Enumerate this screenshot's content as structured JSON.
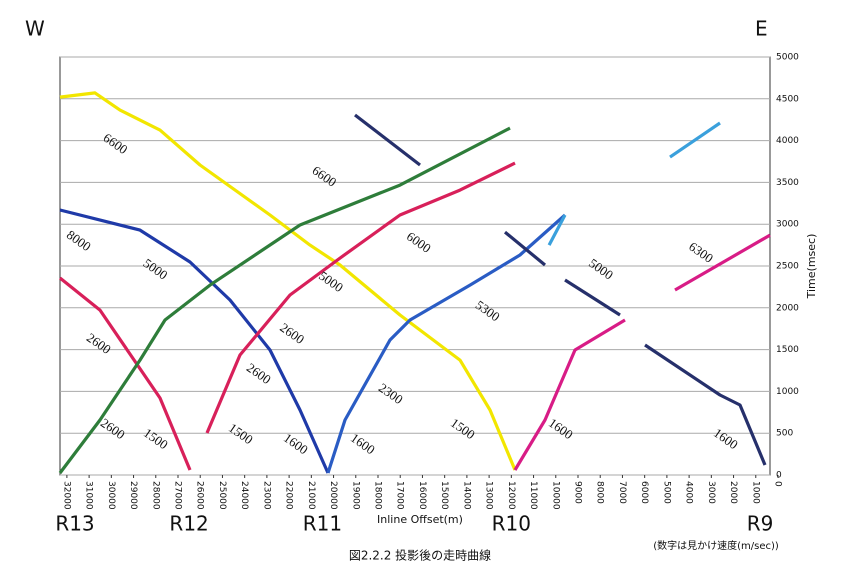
{
  "chart_data": {
    "type": "line",
    "corner_labels": [
      "W",
      "E"
    ],
    "stations": [
      {
        "label": "R13",
        "value": 32000
      },
      {
        "label": "R12",
        "value": 26500
      },
      {
        "label": "R11",
        "value": 20500
      },
      {
        "label": "R10",
        "value": 12000
      },
      {
        "label": "R9",
        "value": 0
      }
    ],
    "xlabel": "Inline Offset(m)",
    "ylabel": "Time(msec)",
    "caption": "図2.2.2 投影後の走時曲線",
    "note": "(数字は見かけ速度(m/sec))",
    "xlim": [
      32310,
      360
    ],
    "ylim": [
      0,
      5000
    ],
    "xticks": [
      32000,
      31000,
      30000,
      29000,
      28000,
      27000,
      26000,
      25000,
      24000,
      23000,
      22000,
      21000,
      20000,
      19000,
      18000,
      17000,
      16000,
      15000,
      14000,
      13000,
      12000,
      11000,
      10000,
      9000,
      8000,
      7000,
      6000,
      5000,
      4000,
      3000,
      2000,
      1000,
      0
    ],
    "yticks": [
      0,
      500,
      1000,
      1500,
      2000,
      2500,
      3000,
      3500,
      4000,
      4500,
      5000
    ],
    "grid": true,
    "series": [
      {
        "color": "#f2e600",
        "x": [
          32310,
          30735,
          29610,
          27810,
          26010,
          22860,
          21060,
          19710,
          17010,
          14310,
          12960,
          11835
        ],
        "values": [
          4520,
          4570,
          4365,
          4126,
          3708,
          3110,
          2750,
          2512,
          1914,
          1375,
          777,
          60
        ]
      },
      {
        "color": "#1f3aa8",
        "x": [
          32310,
          28710,
          26460,
          24660,
          22860,
          21510,
          20250
        ],
        "values": [
          3170,
          2930,
          2548,
          2093,
          1495,
          777,
          24
        ]
      },
      {
        "color": "#2a5cc4",
        "x": [
          20250,
          19485,
          17460,
          16560,
          13860,
          11610,
          9585
        ],
        "values": [
          24,
          658,
          1615,
          1854,
          2272,
          2631,
          3110
        ]
      },
      {
        "color": "#3aa0dc",
        "x": [
          10300,
          9585
        ],
        "values": [
          2750,
          3110
        ]
      },
      {
        "color": "#26306b",
        "x": [
          19035,
          16110
        ],
        "values": [
          4306,
          3708
        ]
      },
      {
        "color": "#26306b",
        "x": [
          12285,
          10485
        ],
        "values": [
          2906,
          2512
        ]
      },
      {
        "color": "#26306b",
        "x": [
          9585,
          7110
        ],
        "values": [
          2332,
          1914
        ]
      },
      {
        "color": "#26306b",
        "x": [
          5985,
          2610,
          1710,
          585
        ],
        "values": [
          1555,
          957,
          837,
          120
        ]
      },
      {
        "color": "#3aa0dc",
        "x": [
          4860,
          2610
        ],
        "values": [
          3803,
          4210
        ]
      },
      {
        "color": "#d8205a",
        "x": [
          32310,
          30510,
          27810,
          26460
        ],
        "values": [
          2356,
          1973,
          921,
          60
        ]
      },
      {
        "color": "#2e7d3a",
        "x": [
          32310,
          30510,
          28710,
          27585,
          25560,
          21510,
          17010,
          12060
        ],
        "values": [
          24,
          658,
          1375,
          1854,
          2272,
          2990,
          3468,
          4150
        ]
      },
      {
        "color": "#d8205a",
        "x": [
          25695,
          24210,
          21960,
          19710,
          17010,
          14310,
          11835
        ],
        "values": [
          502,
          1435,
          2153,
          2595,
          3110,
          3408,
          3731
        ]
      },
      {
        "color": "#d81c86",
        "x": [
          11835,
          10485,
          9135,
          6885
        ],
        "values": [
          60,
          658,
          1495,
          1854
        ]
      },
      {
        "color": "#d81c86",
        "x": [
          4635,
          360
        ],
        "values": [
          2213,
          2870
        ]
      }
    ],
    "annotations": [
      {
        "text": "6600",
        "x": 29850,
        "y": 3950
      },
      {
        "text": "6600",
        "x": 20450,
        "y": 3560
      },
      {
        "text": "8000",
        "x": 31500,
        "y": 2790
      },
      {
        "text": "5000",
        "x": 28050,
        "y": 2450
      },
      {
        "text": "6000",
        "x": 16200,
        "y": 2770
      },
      {
        "text": "5000",
        "x": 20150,
        "y": 2300
      },
      {
        "text": "2600",
        "x": 30600,
        "y": 1560
      },
      {
        "text": "2600",
        "x": 21900,
        "y": 1680
      },
      {
        "text": "5300",
        "x": 13100,
        "y": 1950
      },
      {
        "text": "5000",
        "x": 8000,
        "y": 2450
      },
      {
        "text": "6300",
        "x": 3500,
        "y": 2650
      },
      {
        "text": "2600",
        "x": 23400,
        "y": 1200
      },
      {
        "text": "2300",
        "x": 17460,
        "y": 960
      },
      {
        "text": "1500",
        "x": 14220,
        "y": 540
      },
      {
        "text": "2600",
        "x": 29970,
        "y": 540
      },
      {
        "text": "1500",
        "x": 28035,
        "y": 420
      },
      {
        "text": "1500",
        "x": 24210,
        "y": 480
      },
      {
        "text": "1600",
        "x": 21735,
        "y": 360
      },
      {
        "text": "1600",
        "x": 18720,
        "y": 360
      },
      {
        "text": "1600",
        "x": 9810,
        "y": 540
      },
      {
        "text": "1600",
        "x": 2385,
        "y": 420
      }
    ]
  }
}
